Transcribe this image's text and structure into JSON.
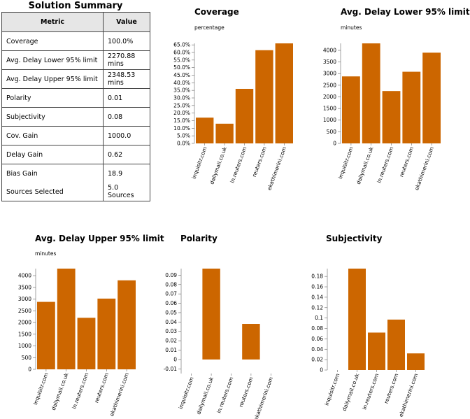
{
  "summary": {
    "title": "Solution Summary",
    "headers": [
      "Metric",
      "Value"
    ],
    "rows": [
      {
        "metric": "Coverage",
        "value": "100.0%"
      },
      {
        "metric": "Avg. Delay Lower 95% limit",
        "value": "2270.88 mins"
      },
      {
        "metric": "Avg. Delay Upper 95% limit",
        "value": "2348.53 mins"
      },
      {
        "metric": "Polarity",
        "value": "0.01"
      },
      {
        "metric": "Subjectivity",
        "value": "0.08"
      },
      {
        "metric": "Cov. Gain",
        "value": "1000.0"
      },
      {
        "metric": "Delay Gain",
        "value": "0.62"
      },
      {
        "metric": "Bias Gain",
        "value": "18.9"
      },
      {
        "metric": "Sources Selected",
        "value": "5.0 Sources"
      }
    ]
  },
  "colors": {
    "bar": "#cc6600",
    "axis": "#666666"
  },
  "chart_data": [
    {
      "type": "bar",
      "title": "Coverage",
      "ylabel": "percentage",
      "categories": [
        "inquisitr.com",
        "dailymail.co.uk",
        "in.reuters.com",
        "reuters.com",
        "ekathimerini.com"
      ],
      "values": [
        17.0,
        13.0,
        36.0,
        61.5,
        66.0
      ],
      "ylim": [
        0,
        66.0
      ],
      "yticks": [
        0,
        5,
        10,
        15,
        20,
        25,
        30,
        35,
        40,
        45,
        50,
        55,
        60,
        65
      ],
      "yticklabels": [
        "0.0%",
        "5.0%",
        "10.0%",
        "15.0%",
        "20.0%",
        "25.0%",
        "30.0%",
        "35.0%",
        "40.0%",
        "45.0%",
        "50.0%",
        "55.0%",
        "60.0%",
        "65.0%"
      ]
    },
    {
      "type": "bar",
      "title": "Avg. Delay Lower 95% limit",
      "ylabel": "minutes",
      "categories": [
        "inquisitr.com",
        "dailymail.co.uk",
        "in.reuters.com",
        "reuters.com",
        "ekathimerini.com"
      ],
      "values": [
        2880,
        4300,
        2250,
        3080,
        3900
      ],
      "ylim": [
        0,
        4300
      ],
      "yticks": [
        0,
        500,
        1000,
        1500,
        2000,
        2500,
        3000,
        3500,
        4000
      ],
      "yticklabels": [
        "0",
        "500",
        "1000",
        "1500",
        "2000",
        "2500",
        "3000",
        "3500",
        "4000"
      ]
    },
    {
      "type": "bar",
      "title": "Avg. Delay Upper 95% limit",
      "ylabel": "minutes",
      "categories": [
        "inquisitr.com",
        "dailymail.co.uk",
        "in.reuters.com",
        "reuters.com",
        "ekathimerini.com"
      ],
      "values": [
        2880,
        4300,
        2200,
        3020,
        3800
      ],
      "ylim": [
        0,
        4300
      ],
      "yticks": [
        0,
        500,
        1000,
        1500,
        2000,
        2500,
        3000,
        3500,
        4000
      ],
      "yticklabels": [
        "0",
        "500",
        "1000",
        "1500",
        "2000",
        "2500",
        "3000",
        "3500",
        "4000"
      ]
    },
    {
      "type": "bar",
      "title": "Polarity",
      "ylabel": "",
      "categories": [
        "inquisitr.com",
        "dailymail.co.uk",
        "in.reuters.com",
        "reuters.com",
        "ekathimerini.com"
      ],
      "values": [
        0.0,
        0.097,
        0.0,
        0.038,
        0.0
      ],
      "ylim": [
        -0.015,
        0.097
      ],
      "yticks": [
        -0.01,
        0,
        0.01,
        0.02,
        0.03,
        0.04,
        0.05,
        0.06,
        0.07,
        0.08,
        0.09
      ],
      "yticklabels": [
        "-0.01",
        "0",
        "0.01",
        "0.02",
        "0.03",
        "0.04",
        "0.05",
        "0.06",
        "0.07",
        "0.08",
        "0.09"
      ]
    },
    {
      "type": "bar",
      "title": "Subjectivity",
      "ylabel": "",
      "categories": [
        "inquisitr.com",
        "dailymail.co.uk",
        "in.reuters.com",
        "reuters.com",
        "ekathimerini.com"
      ],
      "values": [
        0.0,
        0.195,
        0.072,
        0.097,
        0.032
      ],
      "ylim": [
        0,
        0.195
      ],
      "yticks": [
        0,
        0.02,
        0.04,
        0.06,
        0.08,
        0.1,
        0.12,
        0.14,
        0.16,
        0.18
      ],
      "yticklabels": [
        "0",
        "0.02",
        "0.04",
        "0.06",
        "0.08",
        "0.1",
        "0.12",
        "0.14",
        "0.16",
        "0.18"
      ]
    }
  ]
}
